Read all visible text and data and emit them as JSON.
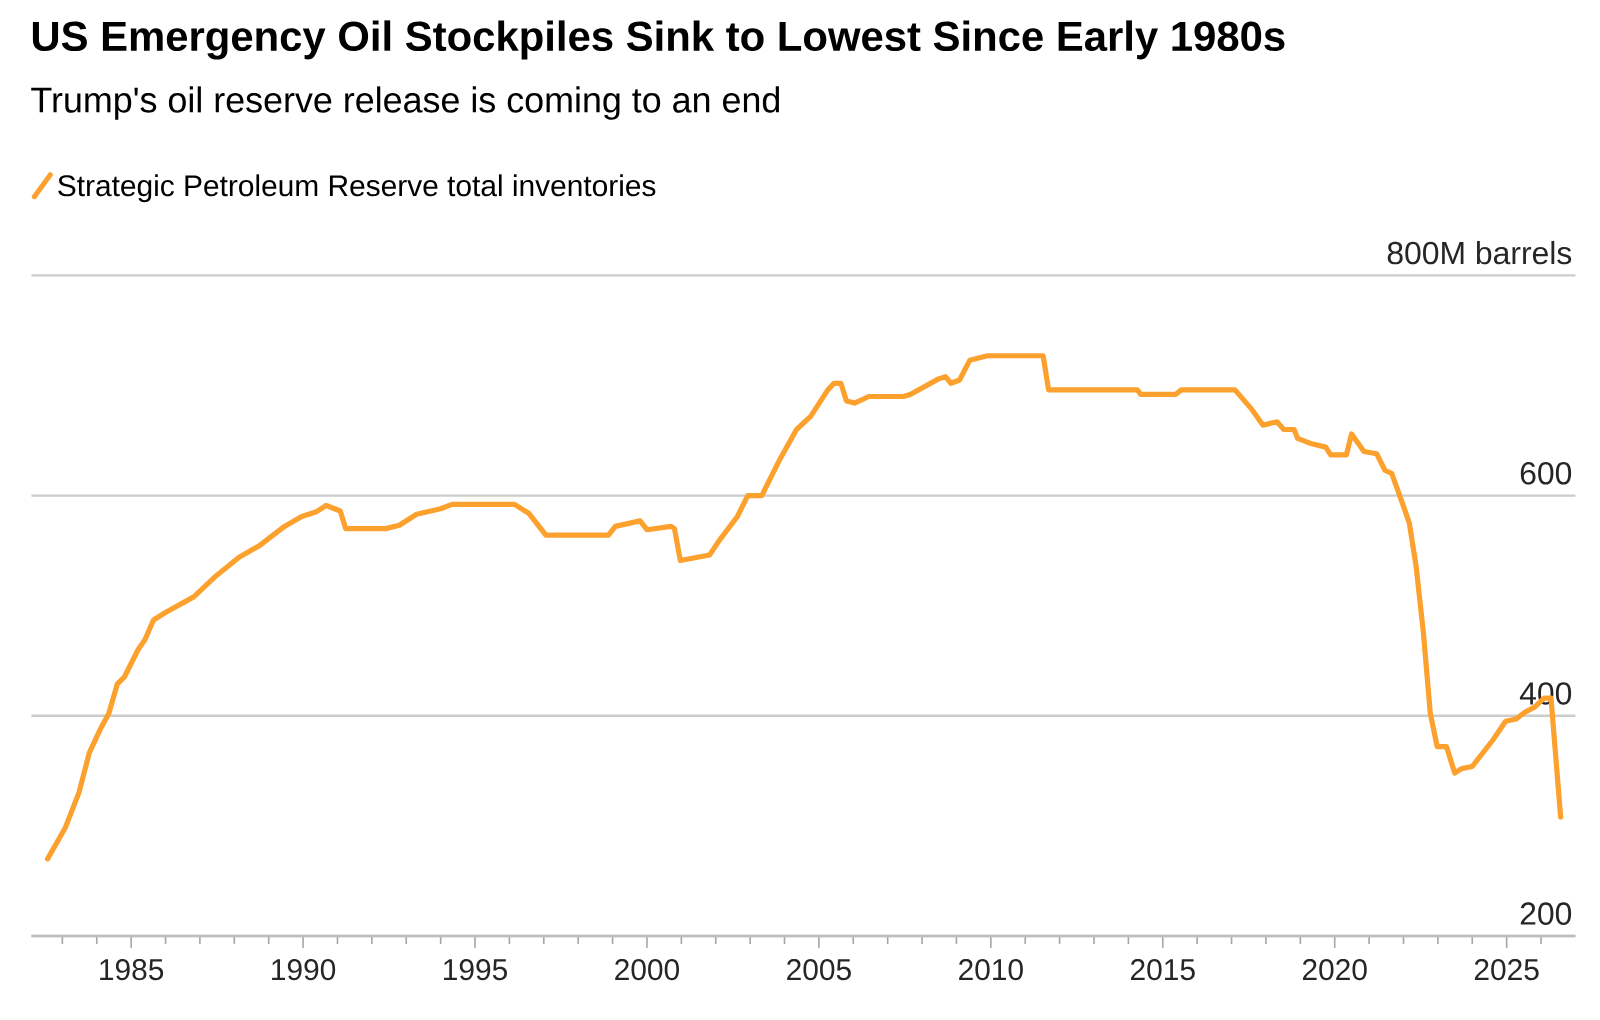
{
  "chart_data": {
    "type": "line",
    "title": "US Emergency Oil Stockpiles Sink to Lowest Since Early 1980s",
    "subtitle": "Trump's oil reserve release is coming to an end",
    "series": [
      {
        "name": "Strategic Petroleum Reserve total inventories",
        "color": "#fca12e",
        "x": [
          1982.57,
          1983.08,
          1983.48,
          1983.78,
          1984.09,
          1984.35,
          1984.6,
          1984.8,
          1985.2,
          1985.4,
          1985.65,
          1986.01,
          1986.82,
          1987.43,
          1988.14,
          1988.75,
          1989.46,
          1989.96,
          1990.37,
          1990.67,
          1991.08,
          1991.24,
          1992.4,
          1992.8,
          1993.3,
          1994.0,
          1994.33,
          1996.15,
          1996.56,
          1997.06,
          1998.88,
          1999.08,
          1999.8,
          2000.0,
          2000.7,
          2000.8,
          2000.97,
          2001.82,
          2002.12,
          2002.63,
          2002.93,
          2003.34,
          2003.85,
          2004.35,
          2004.76,
          2005.26,
          2005.44,
          2005.64,
          2005.8,
          2006.04,
          2006.45,
          2007.46,
          2007.67,
          2008.48,
          2008.68,
          2008.84,
          2009.09,
          2009.39,
          2009.9,
          2011.52,
          2011.68,
          2012.64,
          2014.26,
          2014.36,
          2015.38,
          2015.54,
          2017.1,
          2017.57,
          2017.91,
          2018.32,
          2018.52,
          2018.82,
          2018.92,
          2019.33,
          2019.74,
          2019.88,
          2020.34,
          2020.49,
          2020.85,
          2021.22,
          2021.46,
          2021.66,
          2021.97,
          2022.17,
          2022.37,
          2022.58,
          2022.78,
          2022.98,
          2023.25,
          2023.49,
          2023.69,
          2024.0,
          2024.6,
          2024.97,
          2025.27,
          2025.52,
          2025.82,
          2026.09,
          2026.29,
          2026.57
        ],
        "values": [
          270,
          298,
          330,
          366,
          387,
          402,
          429,
          435,
          460,
          469,
          487,
          494,
          508,
          526,
          544,
          555,
          572,
          581,
          585,
          591,
          586,
          570,
          570,
          573,
          583,
          588,
          592,
          592,
          584,
          564,
          564,
          572,
          577,
          569,
          572,
          570,
          541,
          546,
          560,
          581,
          600,
          600,
          632,
          660,
          672,
          696,
          702,
          702,
          686,
          684,
          690,
          690,
          692,
          706,
          708,
          702,
          705,
          723,
          727,
          727,
          696,
          696,
          696,
          692,
          692,
          696,
          696,
          679,
          664,
          667,
          660,
          660,
          652,
          647,
          644,
          637,
          637,
          656,
          640,
          638,
          623,
          620,
          593,
          575,
          535,
          475,
          402,
          372,
          372,
          348,
          352,
          354,
          378,
          395,
          397,
          403,
          408,
          416,
          416,
          308
        ]
      }
    ],
    "xlim": [
      1982.1,
      2027.0
    ],
    "xticks": [
      {
        "value": 1983,
        "label": null
      },
      {
        "value": 1984,
        "label": null
      },
      1985,
      {
        "value": 1986,
        "label": null
      },
      {
        "value": 1987,
        "label": null
      },
      {
        "value": 1988,
        "label": null
      },
      {
        "value": 1989,
        "label": null
      },
      1990,
      {
        "value": 1991,
        "label": null
      },
      {
        "value": 1992,
        "label": null
      },
      {
        "value": 1993,
        "label": null
      },
      {
        "value": 1994,
        "label": null
      },
      1995,
      {
        "value": 1996,
        "label": null
      },
      {
        "value": 1997,
        "label": null
      },
      {
        "value": 1998,
        "label": null
      },
      {
        "value": 1999,
        "label": null
      },
      2000,
      {
        "value": 2001,
        "label": null
      },
      {
        "value": 2002,
        "label": null
      },
      {
        "value": 2003,
        "label": null
      },
      {
        "value": 2004,
        "label": null
      },
      2005,
      {
        "value": 2006,
        "label": null
      },
      {
        "value": 2007,
        "label": null
      },
      {
        "value": 2008,
        "label": null
      },
      {
        "value": 2009,
        "label": null
      },
      2010,
      {
        "value": 2011,
        "label": null
      },
      {
        "value": 2012,
        "label": null
      },
      {
        "value": 2013,
        "label": null
      },
      {
        "value": 2014,
        "label": null
      },
      2015,
      {
        "value": 2016,
        "label": null
      },
      {
        "value": 2017,
        "label": null
      },
      {
        "value": 2018,
        "label": null
      },
      {
        "value": 2019,
        "label": null
      },
      2020,
      {
        "value": 2021,
        "label": null
      },
      {
        "value": 2022,
        "label": null
      },
      {
        "value": 2023,
        "label": null
      },
      {
        "value": 2024,
        "label": null
      },
      2025,
      {
        "value": 2026,
        "label": null
      }
    ],
    "ylim": [
      200,
      800
    ],
    "yticks": [
      200,
      400,
      600,
      {
        "value": 800,
        "label": "800M barrels"
      }
    ],
    "grid": "y",
    "legend": "top left",
    "marker": "none",
    "line_style": "solid"
  }
}
